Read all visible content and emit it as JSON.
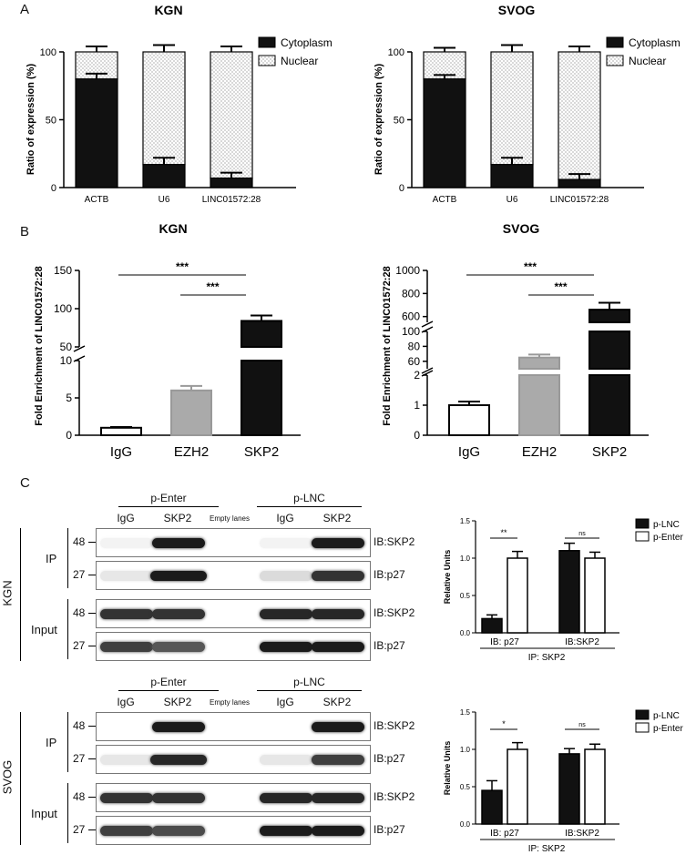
{
  "panels": {
    "A": "A",
    "B": "B",
    "C": "C"
  },
  "panelA": [
    {
      "title": "KGN",
      "ylabel": "Ratio of expression (%)",
      "legend": [
        "Cytoplasm",
        "Nuclear"
      ]
    },
    {
      "title": "SVOG",
      "ylabel": "Ratio of expression (%)",
      "legend": [
        "Cytoplasm",
        "Nuclear"
      ]
    }
  ],
  "panelB": [
    {
      "title": "KGN",
      "ylabel": "Fold Enrichment of LINC01572:28",
      "sig": [
        "***",
        "***"
      ]
    },
    {
      "title": "SVOG",
      "ylabel": "Fold Enrichment of LINC01572:28",
      "sig": [
        "***",
        "***"
      ]
    }
  ],
  "panelC": {
    "blots": [
      {
        "cell": "KGN",
        "groups": [
          "p-Enter",
          "p-LNC"
        ],
        "lanes": [
          "IgG",
          "SKP2",
          "Empty lanes",
          "IgG",
          "SKP2"
        ],
        "sections": [
          "IP",
          "Input"
        ],
        "mw": [
          "48",
          "27",
          "48",
          "27"
        ],
        "ib": [
          "IB:SKP2",
          "IB:p27",
          "IB:SKP2",
          "IB:p27"
        ]
      },
      {
        "cell": "SVOG",
        "groups": [
          "p-Enter",
          "p-LNC"
        ],
        "lanes": [
          "IgG",
          "SKP2",
          "Empty lanes",
          "IgG",
          "SKP2"
        ],
        "sections": [
          "IP",
          "Input"
        ],
        "mw": [
          "48",
          "27",
          "48",
          "27"
        ],
        "ib": [
          "IB:SKP2",
          "IB:p27",
          "IB:SKP2",
          "IB:p27"
        ]
      }
    ],
    "quant": [
      {
        "ylabel": "Relative Units",
        "xgroups": [
          "IB: p27",
          "IB:SKP2"
        ],
        "xtitle": "IP: SKP2",
        "legend": [
          "p-LNC",
          "p-Enter"
        ],
        "sig": [
          "**",
          "ns"
        ]
      },
      {
        "ylabel": "Relative Units",
        "xgroups": [
          "IB: p27",
          "IB:SKP2"
        ],
        "xtitle": "IP: SKP2",
        "legend": [
          "p-LNC",
          "p-Enter"
        ],
        "sig": [
          "*",
          "ns"
        ]
      }
    ]
  },
  "chart_data": [
    {
      "type": "bar",
      "panel": "A",
      "title": "KGN",
      "ylabel": "Ratio of expression (%)",
      "categories": [
        "ACTB",
        "U6",
        "LINC01572:28"
      ],
      "stacked": true,
      "ylim": [
        0,
        100
      ],
      "yticks": [
        0,
        50,
        100
      ],
      "series": [
        {
          "name": "Cytoplasm",
          "values": [
            80,
            17,
            7
          ],
          "errors": [
            4,
            5,
            4
          ]
        },
        {
          "name": "Nuclear",
          "values": [
            20,
            83,
            93
          ],
          "errors": [
            4,
            5,
            4
          ]
        }
      ],
      "colors": {
        "Cytoplasm": "#111111",
        "Nuclear": "#ffffff"
      }
    },
    {
      "type": "bar",
      "panel": "A",
      "title": "SVOG",
      "ylabel": "Ratio of expression (%)",
      "categories": [
        "ACTB",
        "U6",
        "LINC01572:28"
      ],
      "stacked": true,
      "ylim": [
        0,
        100
      ],
      "yticks": [
        0,
        50,
        100
      ],
      "series": [
        {
          "name": "Cytoplasm",
          "values": [
            80,
            17,
            6
          ],
          "errors": [
            3,
            5,
            4
          ]
        },
        {
          "name": "Nuclear",
          "values": [
            20,
            83,
            94
          ],
          "errors": [
            3,
            5,
            4
          ]
        }
      ]
    },
    {
      "type": "bar",
      "panel": "B",
      "title": "KGN",
      "ylabel": "Fold Enrichment of LINC01572:28",
      "categories": [
        "IgG",
        "EZH2",
        "SKP2"
      ],
      "values": [
        1,
        6,
        84
      ],
      "errors": [
        0.1,
        0.6,
        7
      ],
      "axis_breaks": [
        [
          10,
          50
        ]
      ],
      "yticks": [
        0,
        5,
        10,
        50,
        100,
        150
      ],
      "sig": [
        [
          "IgG",
          "SKP2",
          "***"
        ],
        [
          "EZH2",
          "SKP2",
          "***"
        ]
      ]
    },
    {
      "type": "bar",
      "panel": "B",
      "title": "SVOG",
      "ylabel": "Fold Enrichment of LINC01572:28",
      "categories": [
        "IgG",
        "EZH2",
        "SKP2"
      ],
      "values": [
        1,
        65,
        660
      ],
      "errors": [
        0.12,
        4,
        60
      ],
      "axis_breaks": [
        [
          2,
          50
        ],
        [
          100,
          550
        ]
      ],
      "yticks": [
        0,
        1,
        2,
        60,
        80,
        100,
        600,
        800,
        1000
      ],
      "sig": [
        [
          "IgG",
          "SKP2",
          "***"
        ],
        [
          "EZH2",
          "SKP2",
          "***"
        ]
      ]
    },
    {
      "type": "bar",
      "panel": "C",
      "cell": "KGN",
      "ylabel": "Relative Units",
      "categories": [
        "IB: p27",
        "IB:SKP2"
      ],
      "xlabel": "IP: SKP2",
      "ylim": [
        0,
        1.5
      ],
      "yticks": [
        0.0,
        0.5,
        1.0,
        1.5
      ],
      "series": [
        {
          "name": "p-LNC",
          "values": [
            0.19,
            1.1
          ],
          "errors": [
            0.05,
            0.1
          ]
        },
        {
          "name": "p-Enter",
          "values": [
            1.0,
            1.0
          ],
          "errors": [
            0.09,
            0.08
          ]
        }
      ]
    },
    {
      "type": "bar",
      "panel": "C",
      "cell": "SVOG",
      "ylabel": "Relative Units",
      "categories": [
        "IB: p27",
        "IB:SKP2"
      ],
      "xlabel": "IP: SKP2",
      "ylim": [
        0,
        1.5
      ],
      "yticks": [
        0.0,
        0.5,
        1.0,
        1.5
      ],
      "series": [
        {
          "name": "p-LNC",
          "values": [
            0.45,
            0.94
          ],
          "errors": [
            0.13,
            0.07
          ]
        },
        {
          "name": "p-Enter",
          "values": [
            1.0,
            1.0
          ],
          "errors": [
            0.09,
            0.07
          ]
        }
      ]
    }
  ]
}
